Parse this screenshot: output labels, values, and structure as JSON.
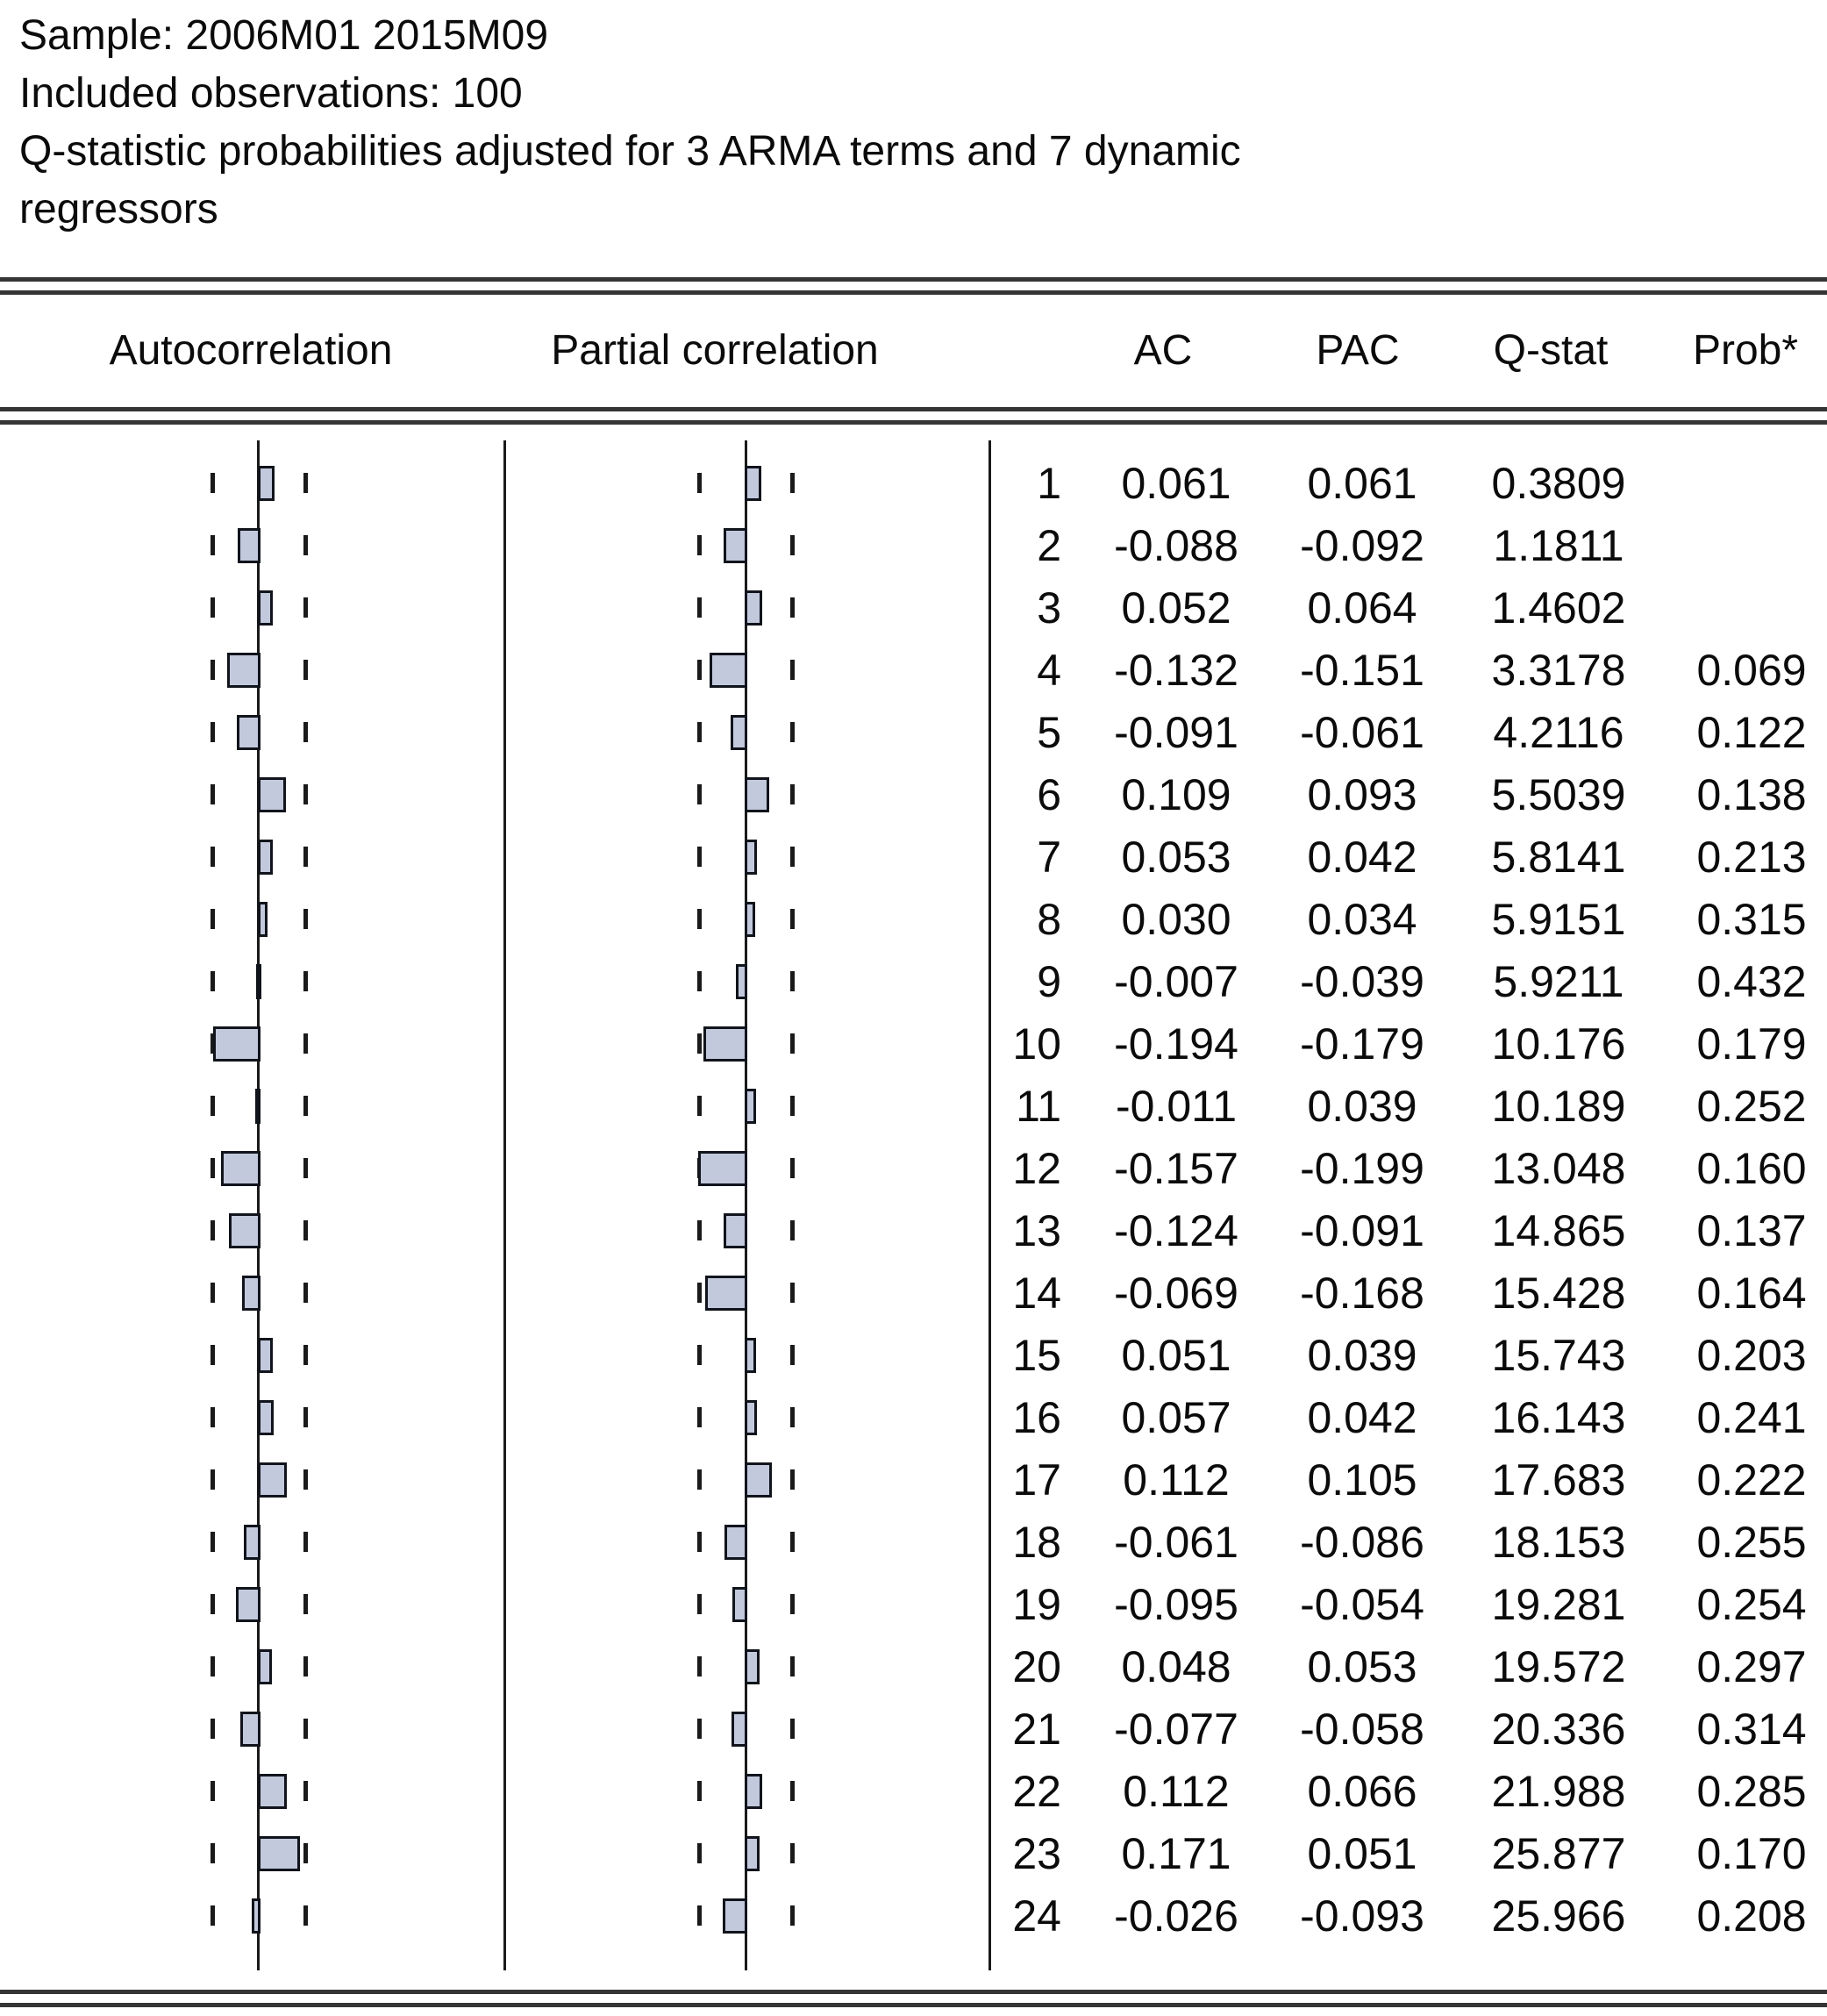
{
  "header": {
    "line1": "Sample: 2006M01 2015M09",
    "line2": "Included observations: 100",
    "line3": "Q-statistic probabilities adjusted for 3 ARMA terms and 7 dynamic",
    "line4": "regressors"
  },
  "columns": {
    "autocorrelation": "Autocorrelation",
    "partial_correlation": "Partial correlation",
    "ac": "AC",
    "pac": "PAC",
    "qstat": "Q-stat",
    "prob": "Prob*"
  },
  "chart_data": {
    "type": "bar",
    "orientation": "horizontal",
    "panels": [
      "Autocorrelation",
      "Partial correlation"
    ],
    "categories": [
      1,
      2,
      3,
      4,
      5,
      6,
      7,
      8,
      9,
      10,
      11,
      12,
      13,
      14,
      15,
      16,
      17,
      18,
      19,
      20,
      21,
      22,
      23,
      24
    ],
    "series": [
      {
        "name": "AC",
        "values": [
          0.061,
          -0.088,
          0.052,
          -0.132,
          -0.091,
          0.109,
          0.053,
          0.03,
          -0.007,
          -0.194,
          -0.011,
          -0.157,
          -0.124,
          -0.069,
          0.051,
          0.057,
          0.112,
          -0.061,
          -0.095,
          0.048,
          -0.077,
          0.112,
          0.171,
          -0.026
        ]
      },
      {
        "name": "PAC",
        "values": [
          0.061,
          -0.092,
          0.064,
          -0.151,
          -0.061,
          0.093,
          0.042,
          0.034,
          -0.039,
          -0.179,
          0.039,
          -0.199,
          -0.091,
          -0.168,
          0.039,
          0.042,
          0.105,
          -0.086,
          -0.054,
          0.053,
          -0.058,
          0.066,
          0.051,
          -0.093
        ]
      }
    ],
    "qstat": [
      0.3809,
      1.1811,
      1.4602,
      3.3178,
      4.2116,
      5.5039,
      5.8141,
      5.9151,
      5.9211,
      10.176,
      10.189,
      13.048,
      14.865,
      15.428,
      15.743,
      16.143,
      17.683,
      18.153,
      19.281,
      19.572,
      20.336,
      21.988,
      25.877,
      25.966
    ],
    "prob": [
      null,
      null,
      null,
      0.069,
      0.122,
      0.138,
      0.213,
      0.315,
      0.432,
      0.179,
      0.252,
      0.16,
      0.137,
      0.164,
      0.203,
      0.241,
      0.222,
      0.255,
      0.254,
      0.297,
      0.314,
      0.285,
      0.17,
      0.208
    ],
    "confidence_band": 0.2,
    "zero_line": true,
    "grid": false,
    "xlim_per_panel": [
      -0.25,
      0.25
    ]
  },
  "table": {
    "rows": [
      {
        "lag": "1",
        "ac": "0.061",
        "pac": "0.061",
        "qstat": "0.3809",
        "prob": ""
      },
      {
        "lag": "2",
        "ac": "-0.088",
        "pac": "-0.092",
        "qstat": "1.1811",
        "prob": ""
      },
      {
        "lag": "3",
        "ac": "0.052",
        "pac": "0.064",
        "qstat": "1.4602",
        "prob": ""
      },
      {
        "lag": "4",
        "ac": "-0.132",
        "pac": "-0.151",
        "qstat": "3.3178",
        "prob": "0.069"
      },
      {
        "lag": "5",
        "ac": "-0.091",
        "pac": "-0.061",
        "qstat": "4.2116",
        "prob": "0.122"
      },
      {
        "lag": "6",
        "ac": "0.109",
        "pac": "0.093",
        "qstat": "5.5039",
        "prob": "0.138"
      },
      {
        "lag": "7",
        "ac": "0.053",
        "pac": "0.042",
        "qstat": "5.8141",
        "prob": "0.213"
      },
      {
        "lag": "8",
        "ac": "0.030",
        "pac": "0.034",
        "qstat": "5.9151",
        "prob": "0.315"
      },
      {
        "lag": "9",
        "ac": "-0.007",
        "pac": "-0.039",
        "qstat": "5.9211",
        "prob": "0.432"
      },
      {
        "lag": "10",
        "ac": "-0.194",
        "pac": "-0.179",
        "qstat": "10.176",
        "prob": "0.179"
      },
      {
        "lag": "11",
        "ac": "-0.011",
        "pac": "0.039",
        "qstat": "10.189",
        "prob": "0.252"
      },
      {
        "lag": "12",
        "ac": "-0.157",
        "pac": "-0.199",
        "qstat": "13.048",
        "prob": "0.160"
      },
      {
        "lag": "13",
        "ac": "-0.124",
        "pac": "-0.091",
        "qstat": "14.865",
        "prob": "0.137"
      },
      {
        "lag": "14",
        "ac": "-0.069",
        "pac": "-0.168",
        "qstat": "15.428",
        "prob": "0.164"
      },
      {
        "lag": "15",
        "ac": "0.051",
        "pac": "0.039",
        "qstat": "15.743",
        "prob": "0.203"
      },
      {
        "lag": "16",
        "ac": "0.057",
        "pac": "0.042",
        "qstat": "16.143",
        "prob": "0.241"
      },
      {
        "lag": "17",
        "ac": "0.112",
        "pac": "0.105",
        "qstat": "17.683",
        "prob": "0.222"
      },
      {
        "lag": "18",
        "ac": "-0.061",
        "pac": "-0.086",
        "qstat": "18.153",
        "prob": "0.255"
      },
      {
        "lag": "19",
        "ac": "-0.095",
        "pac": "-0.054",
        "qstat": "19.281",
        "prob": "0.254"
      },
      {
        "lag": "20",
        "ac": "0.048",
        "pac": "0.053",
        "qstat": "19.572",
        "prob": "0.297"
      },
      {
        "lag": "21",
        "ac": "-0.077",
        "pac": "-0.058",
        "qstat": "20.336",
        "prob": "0.314"
      },
      {
        "lag": "22",
        "ac": "0.112",
        "pac": "0.066",
        "qstat": "21.988",
        "prob": "0.285"
      },
      {
        "lag": "23",
        "ac": "0.171",
        "pac": "0.051",
        "qstat": "25.877",
        "prob": "0.170"
      },
      {
        "lag": "24",
        "ac": "-0.026",
        "pac": "-0.093",
        "qstat": "25.966",
        "prob": "0.208"
      }
    ]
  },
  "colors": {
    "bar_fill": "#c2c9dd",
    "bar_border": "#11141b",
    "line": "#1a1a1a",
    "rule": "#353535",
    "text": "#0b0b0b"
  }
}
